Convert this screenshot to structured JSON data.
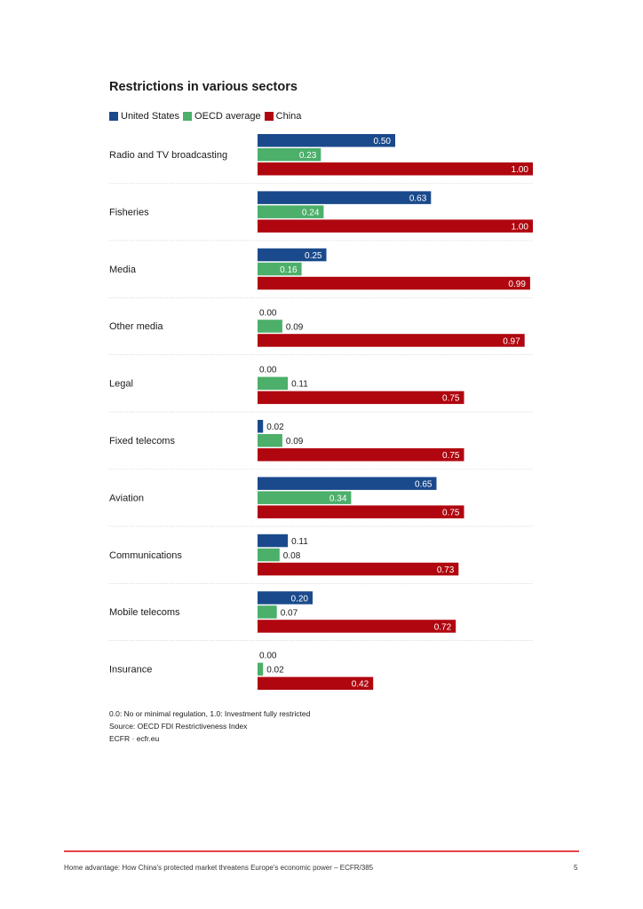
{
  "chart_data": {
    "type": "bar",
    "orientation": "horizontal",
    "title": "Restrictions in various sectors",
    "categories": [
      "Radio and TV broadcasting",
      "Fisheries",
      "Media",
      "Other media",
      "Legal",
      "Fixed telecoms",
      "Aviation",
      "Communications",
      "Mobile telecoms",
      "Insurance"
    ],
    "series": [
      {
        "name": "United States",
        "color": "#1a4a8c",
        "values": [
          0.5,
          0.63,
          0.25,
          0.0,
          0.0,
          0.02,
          0.65,
          0.11,
          0.2,
          0.0
        ],
        "labels": [
          "0.50",
          "0.63",
          "0.25",
          "0.00",
          "0.00",
          "0.02",
          "0.65",
          "0.11",
          "0.20",
          "0.00"
        ]
      },
      {
        "name": "OECD average",
        "color": "#4caf6a",
        "values": [
          0.23,
          0.24,
          0.16,
          0.09,
          0.11,
          0.09,
          0.34,
          0.08,
          0.07,
          0.02
        ],
        "labels": [
          "0.23",
          "0.24",
          "0.16",
          "0.09",
          "0.11",
          "0.09",
          "0.34",
          "0.08",
          "0.07",
          "0.02"
        ]
      },
      {
        "name": "China",
        "color": "#b0060f",
        "values": [
          1.0,
          1.0,
          0.99,
          0.97,
          0.75,
          0.75,
          0.75,
          0.73,
          0.72,
          0.42
        ],
        "labels": [
          "1.00",
          "1.00",
          "0.99",
          "0.97",
          "0.75",
          "0.75",
          "0.75",
          "0.73",
          "0.72",
          "0.42"
        ]
      }
    ],
    "xlim": [
      0,
      1.0
    ],
    "grid": false,
    "legend_position": "top-left"
  },
  "notes": {
    "scale": "0.0: No or minimal regulation, 1.0: Investment fully restricted",
    "source": "Source: OECD FDI Restrictiveness Index",
    "credit": "ECFR · ecfr.eu"
  },
  "footer": {
    "text": "Home advantage: How China's protected market threatens Europe's economic power – ECFR/385",
    "page_number": "5"
  }
}
